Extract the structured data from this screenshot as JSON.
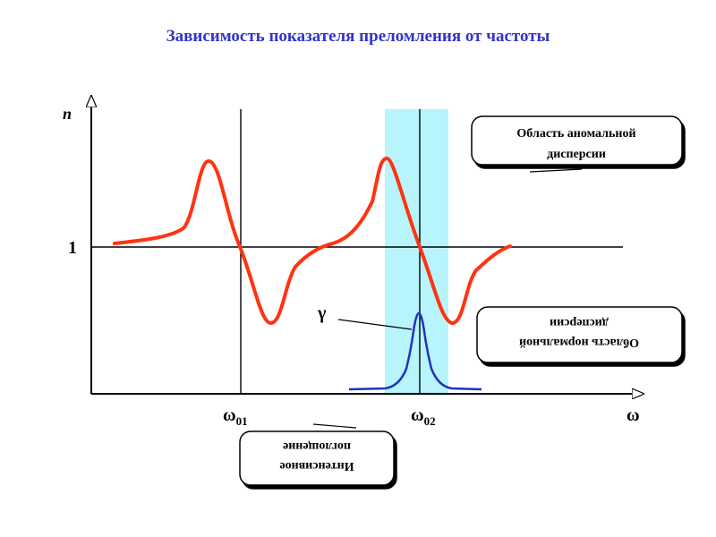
{
  "title": "Зависимость показателя преломления от частоты",
  "axes": {
    "y_label": "n",
    "x_label": "ω",
    "unity_label": "1",
    "omega01_base": "ω",
    "omega01_sub": "01",
    "omega02_base": "ω",
    "omega02_sub": "02",
    "gamma_label": "γ"
  },
  "callouts": {
    "anomalous_line1": "Область аномальной",
    "anomalous_line2": "дисперсии",
    "normal_line1": "Область нормальной",
    "normal_line2": "дисперсии",
    "absorption_line1": "Интенсивное",
    "absorption_line2": "поглощение"
  },
  "colors": {
    "title": "#3333cc",
    "dispersion_curve": "#ff3311",
    "absorption_curve": "#2233bb",
    "band": "#b8f4fb",
    "axes": "#000000"
  }
}
